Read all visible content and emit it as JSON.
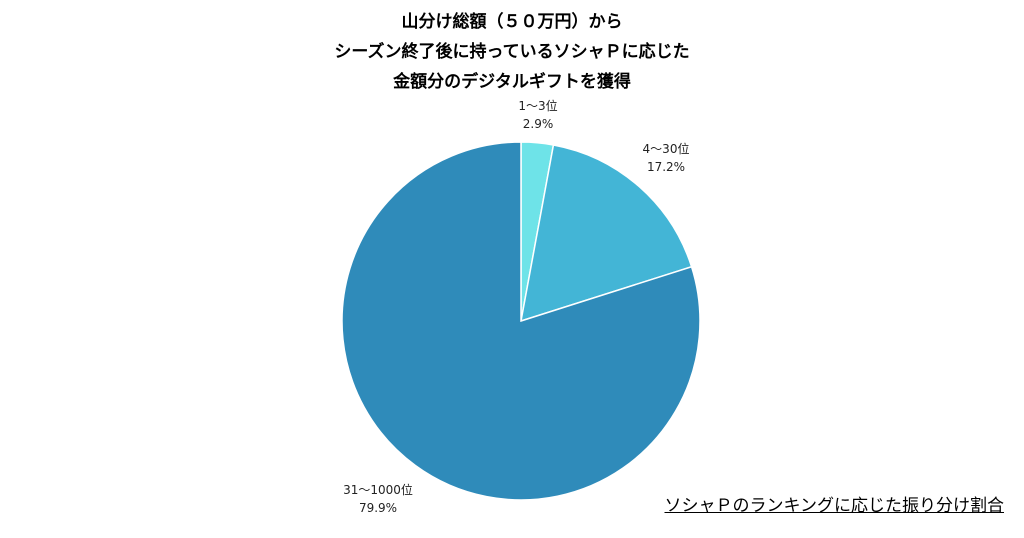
{
  "chart_data": {
    "type": "pie",
    "title_lines": [
      "山分け総額（５０万円）から",
      "シーズン終了後に持っているソシャＰに応じた",
      "金額分のデジタルギフトを獲得"
    ],
    "slices": [
      {
        "label": "1〜3位",
        "value": 2.9,
        "value_text": "2.9%",
        "color": "#6ee3e8"
      },
      {
        "label": "4〜30位",
        "value": 17.2,
        "value_text": "17.2%",
        "color": "#43b5d6"
      },
      {
        "label": "31〜1000位",
        "value": 79.9,
        "value_text": "79.9%",
        "color": "#2f8bba"
      }
    ],
    "start_angle": "12 o'clock",
    "direction": "clockwise",
    "legend": "none"
  },
  "caption": "ソシャＰのランキングに応じた振り分け割合"
}
